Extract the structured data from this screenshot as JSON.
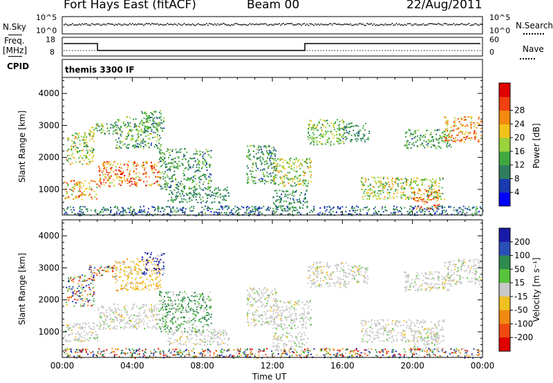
{
  "header": {
    "station": "Fort Hays East (fitACF)",
    "beam": "Beam 00",
    "date": "22/Aug/2011"
  },
  "noise_panel": {
    "left_label": "N.Sky",
    "right_label": "N.Search",
    "left_ticks": [
      "10^5",
      "10^0"
    ],
    "right_ticks": [
      "10^5",
      "10^0"
    ]
  },
  "freq_panel": {
    "left_label_1": "Freq.",
    "left_label_2": "[MHz]",
    "right_label": "Nave",
    "left_ticks": [
      "18",
      "8"
    ],
    "right_ticks": [
      "60",
      "0"
    ]
  },
  "cpid_panel": {
    "label": "CPID",
    "program": "themis 3300 IF"
  },
  "chart_data": [
    {
      "type": "heatmap",
      "name": "power",
      "ylabel": "Slant Range [km]",
      "yticks": [
        "1000",
        "2000",
        "3000",
        "4000"
      ],
      "ylim": [
        200,
        4500
      ],
      "colorbar_label": "Power [dB]",
      "colorbar_ticks": [
        "4",
        "8",
        "12",
        "16",
        "20",
        "24",
        "28"
      ],
      "colorbar_colors": [
        "#0000ff",
        "#1a3ab0",
        "#2e7d5e",
        "#3fa83f",
        "#9ad23a",
        "#f2c21a",
        "#f58a10",
        "#f04010",
        "#e00000"
      ]
    },
    {
      "type": "heatmap",
      "name": "velocity",
      "ylabel": "Slant Range [km]",
      "yticks": [
        "1000",
        "2000",
        "3000",
        "4000"
      ],
      "ylim": [
        200,
        4500
      ],
      "colorbar_label": "Velocity [m s⁻¹]",
      "colorbar_ticks": [
        "200",
        "100",
        "50",
        "15",
        "-15",
        "-50",
        "-100",
        "-200"
      ],
      "colorbar_colors": [
        "#1a1aa8",
        "#2a4fb8",
        "#2e8a4e",
        "#56c43a",
        "#c8c8c8",
        "#f0c020",
        "#f08a10",
        "#f04a10",
        "#e00000"
      ]
    }
  ],
  "time_axis": {
    "label": "Time UT",
    "ticks": [
      "00:00",
      "04:00",
      "08:00",
      "12:00",
      "16:00",
      "20:00",
      "00:00"
    ]
  }
}
